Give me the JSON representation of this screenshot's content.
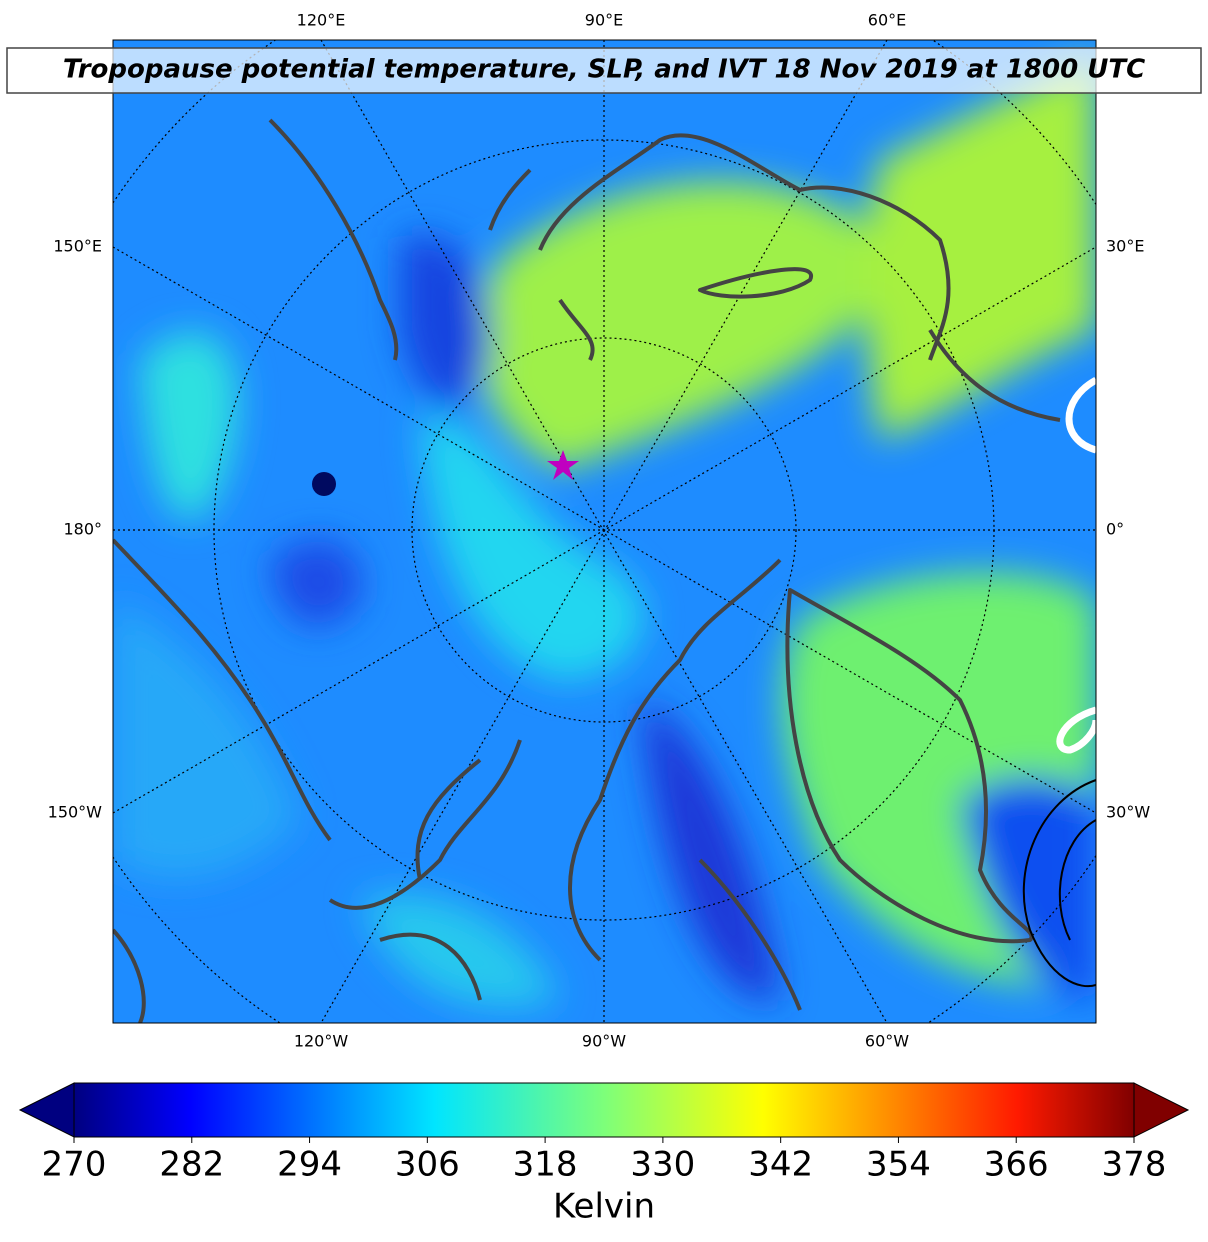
{
  "map": {
    "title": "Tropopause potential temperature, SLP, and IVT 18 Nov 2019 at 1800 UTC",
    "top_labels": [
      "120°E",
      "90°E",
      "60°E"
    ],
    "bottom_labels": [
      "120°W",
      "90°W",
      "60°W"
    ],
    "left_labels": [
      "150°E",
      "180°",
      "150°W"
    ],
    "right_labels": [
      "30°E",
      "0°",
      "30°W"
    ]
  },
  "colorbar": {
    "label": "Kelvin",
    "range": [
      270,
      378
    ],
    "ticks": [
      270,
      282,
      294,
      306,
      318,
      330,
      342,
      354,
      366,
      378
    ]
  }
}
